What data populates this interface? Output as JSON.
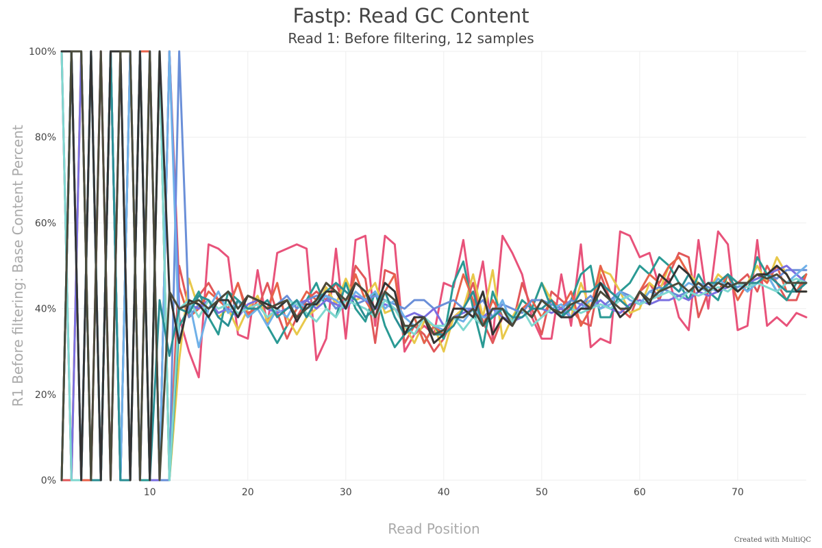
{
  "chart_data": {
    "type": "line",
    "title": "Fastp: Read GC Content",
    "subtitle": "Read 1: Before filtering, 12 samples",
    "xlabel": "Read Position",
    "ylabel": "R1 Before filtering: Base Content Percent",
    "xlim": [
      1,
      77
    ],
    "ylim": [
      0,
      100
    ],
    "x_ticks": [
      10,
      20,
      30,
      40,
      50,
      60,
      70
    ],
    "y_ticks": [
      0,
      20,
      40,
      60,
      80,
      100
    ],
    "y_tick_labels": [
      "0%",
      "20%",
      "40%",
      "60%",
      "80%",
      "100%"
    ],
    "grid": true,
    "legend": "none",
    "credit": "Created with MultiQC",
    "x": [
      1,
      2,
      3,
      4,
      5,
      6,
      7,
      8,
      9,
      10,
      11,
      12,
      13,
      14,
      15,
      16,
      17,
      18,
      19,
      20,
      21,
      22,
      23,
      24,
      25,
      26,
      27,
      28,
      29,
      30,
      31,
      32,
      33,
      34,
      35,
      36,
      37,
      38,
      39,
      40,
      41,
      42,
      43,
      44,
      45,
      46,
      47,
      48,
      49,
      50,
      51,
      52,
      53,
      54,
      55,
      56,
      57,
      58,
      59,
      60,
      61,
      62,
      63,
      64,
      65,
      66,
      67,
      68,
      69,
      70,
      71,
      72,
      73,
      74,
      75,
      76,
      77
    ],
    "series": [
      {
        "color": "#e8527a",
        "values": [
          100,
          0,
          0,
          100,
          0,
          100,
          0,
          100,
          0,
          100,
          0,
          100,
          38,
          30,
          24,
          55,
          54,
          52,
          34,
          33,
          49,
          36,
          53,
          54,
          55,
          54,
          28,
          33,
          54,
          33,
          56,
          57,
          36,
          57,
          55,
          30,
          34,
          36,
          34,
          46,
          45,
          56,
          40,
          51,
          33,
          57,
          53,
          48,
          38,
          33,
          33,
          48,
          36,
          55,
          31,
          33,
          32,
          58,
          57,
          52,
          53,
          45,
          47,
          38,
          35,
          56,
          40,
          58,
          55,
          35,
          36,
          56,
          36,
          38,
          36,
          39,
          38
        ]
      },
      {
        "color": "#e15759",
        "values": [
          0,
          0,
          100,
          0,
          0,
          100,
          0,
          100,
          0,
          0,
          100,
          0,
          50,
          40,
          43,
          46,
          42,
          40,
          46,
          39,
          40,
          46,
          39,
          33,
          38,
          42,
          44,
          42,
          46,
          40,
          50,
          47,
          32,
          49,
          48,
          32,
          36,
          34,
          30,
          33,
          38,
          40,
          46,
          37,
          32,
          38,
          36,
          46,
          40,
          34,
          44,
          42,
          40,
          37,
          36,
          48,
          42,
          40,
          38,
          44,
          46,
          42,
          48,
          53,
          52,
          38,
          44,
          46,
          48,
          46,
          48,
          44,
          50,
          46,
          42,
          42,
          48
        ]
      },
      {
        "color": "#e8c84a",
        "values": [
          100,
          0,
          100,
          0,
          100,
          0,
          100,
          0,
          100,
          0,
          100,
          0,
          28,
          47,
          40,
          42,
          38,
          40,
          35,
          40,
          43,
          37,
          40,
          38,
          34,
          38,
          40,
          45,
          41,
          47,
          42,
          43,
          46,
          39,
          40,
          36,
          32,
          37,
          36,
          30,
          38,
          40,
          48,
          38,
          49,
          33,
          38,
          42,
          40,
          46,
          42,
          40,
          38,
          46,
          40,
          49,
          48,
          44,
          39,
          40,
          46,
          44,
          50,
          52,
          48,
          46,
          44,
          48,
          46,
          44,
          46,
          50,
          46,
          52,
          48,
          44,
          44
        ]
      },
      {
        "color": "#2a9a94",
        "values": [
          0,
          100,
          0,
          100,
          0,
          100,
          0,
          100,
          0,
          0,
          100,
          0,
          36,
          40,
          44,
          38,
          34,
          44,
          42,
          38,
          40,
          36,
          32,
          36,
          40,
          42,
          46,
          40,
          38,
          46,
          40,
          37,
          44,
          36,
          31,
          34,
          38,
          32,
          36,
          33,
          46,
          51,
          40,
          31,
          44,
          38,
          37,
          42,
          40,
          46,
          40,
          38,
          42,
          48,
          50,
          38,
          38,
          44,
          46,
          50,
          48,
          52,
          50,
          46,
          42,
          48,
          44,
          42,
          48,
          46,
          44,
          52,
          48,
          44,
          42,
          46,
          48
        ]
      },
      {
        "color": "#e8624a",
        "values": [
          0,
          100,
          0,
          0,
          100,
          0,
          100,
          0,
          100,
          100,
          0,
          100,
          45,
          38,
          40,
          44,
          42,
          40,
          46,
          38,
          42,
          40,
          46,
          36,
          40,
          44,
          42,
          46,
          44,
          40,
          48,
          42,
          38,
          44,
          48,
          34,
          38,
          32,
          36,
          34,
          40,
          48,
          42,
          36,
          42,
          38,
          36,
          40,
          42,
          38,
          42,
          40,
          44,
          36,
          40,
          50,
          44,
          42,
          40,
          44,
          48,
          46,
          50,
          52,
          48,
          44,
          46,
          44,
          48,
          42,
          46,
          48,
          46,
          50,
          44,
          44,
          48
        ]
      },
      {
        "color": "#6a8fd8",
        "values": [
          0,
          100,
          0,
          100,
          0,
          100,
          0,
          100,
          0,
          100,
          0,
          0,
          100,
          38,
          41,
          40,
          42,
          44,
          40,
          43,
          42,
          40,
          41,
          43,
          40,
          42,
          43,
          43,
          40,
          42,
          41,
          42,
          43,
          42,
          41,
          40,
          42,
          42,
          40,
          41,
          42,
          40,
          40,
          42,
          38,
          41,
          40,
          39,
          42,
          42,
          41,
          40,
          42,
          41,
          43,
          40,
          42,
          44,
          43,
          41,
          44,
          45,
          44,
          43,
          44,
          46,
          45,
          44,
          46,
          45,
          46,
          47,
          48,
          47,
          49,
          49,
          49
        ]
      },
      {
        "color": "#7b6fe0",
        "values": [
          100,
          0,
          100,
          0,
          100,
          0,
          100,
          0,
          100,
          0,
          0,
          100,
          40,
          41,
          40,
          42,
          39,
          40,
          38,
          41,
          42,
          40,
          39,
          40,
          41,
          42,
          40,
          42,
          41,
          40,
          43,
          42,
          40,
          41,
          40,
          38,
          39,
          38,
          40,
          36,
          38,
          39,
          40,
          38,
          40,
          38,
          37,
          38,
          40,
          40,
          39,
          40,
          38,
          41,
          40,
          42,
          40,
          39,
          41,
          42,
          41,
          42,
          42,
          43,
          42,
          44,
          43,
          44,
          45,
          46,
          46,
          47,
          48,
          49,
          50,
          48,
          46
        ]
      },
      {
        "color": "#6fb0e8",
        "values": [
          0,
          100,
          0,
          100,
          0,
          100,
          0,
          100,
          0,
          100,
          0,
          100,
          32,
          42,
          31,
          40,
          44,
          39,
          42,
          38,
          40,
          36,
          40,
          38,
          42,
          40,
          41,
          43,
          42,
          40,
          44,
          42,
          44,
          40,
          42,
          38,
          36,
          38,
          36,
          35,
          38,
          37,
          40,
          38,
          38,
          42,
          36,
          40,
          38,
          42,
          40,
          41,
          38,
          40,
          42,
          40,
          41,
          44,
          42,
          41,
          44,
          43,
          46,
          44,
          46,
          45,
          44,
          47,
          45,
          46,
          44,
          46,
          48,
          44,
          46,
          48,
          50
        ]
      },
      {
        "color": "#7fd8d0",
        "values": [
          100,
          0,
          0,
          100,
          0,
          100,
          100,
          0,
          100,
          0,
          100,
          0,
          40,
          42,
          38,
          42,
          40,
          41,
          39,
          40,
          41,
          38,
          40,
          42,
          41,
          39,
          37,
          40,
          38,
          42,
          41,
          40,
          38,
          42,
          40,
          36,
          34,
          38,
          36,
          36,
          38,
          35,
          38,
          36,
          38,
          40,
          37,
          40,
          36,
          38,
          40,
          38,
          40,
          39,
          40,
          41,
          40,
          42,
          43,
          41,
          42,
          43,
          44,
          42,
          44,
          43,
          44,
          45,
          44,
          46,
          45,
          46,
          45,
          44,
          46,
          47,
          46
        ]
      },
      {
        "color": "#2a8f94",
        "values": [
          0,
          100,
          100,
          0,
          0,
          100,
          0,
          0,
          100,
          0,
          42,
          29,
          40,
          39,
          43,
          42,
          38,
          36,
          42,
          40,
          40,
          42,
          38,
          40,
          42,
          38,
          42,
          44,
          46,
          44,
          42,
          38,
          40,
          44,
          38,
          34,
          36,
          38,
          34,
          34,
          36,
          40,
          44,
          36,
          38,
          40,
          38,
          38,
          40,
          40,
          42,
          38,
          40,
          44,
          44,
          46,
          44,
          42,
          40,
          44,
          42,
          44,
          46,
          44,
          48,
          44,
          46,
          46,
          48,
          44,
          46,
          46,
          48,
          46,
          44,
          44,
          46
        ]
      },
      {
        "color": "#333333",
        "values": [
          100,
          100,
          0,
          100,
          0,
          100,
          100,
          0,
          100,
          0,
          100,
          44,
          32,
          42,
          41,
          38,
          42,
          42,
          38,
          43,
          42,
          41,
          40,
          42,
          37,
          41,
          41,
          44,
          44,
          40,
          46,
          44,
          40,
          46,
          44,
          34,
          38,
          38,
          32,
          34,
          40,
          40,
          38,
          44,
          34,
          38,
          36,
          40,
          38,
          42,
          40,
          38,
          38,
          40,
          40,
          46,
          42,
          38,
          40,
          44,
          41,
          48,
          46,
          50,
          48,
          44,
          46,
          44,
          46,
          44,
          46,
          48,
          48,
          50,
          48,
          44,
          44
        ]
      },
      {
        "color": "#4a4a3a",
        "values": [
          0,
          100,
          100,
          0,
          100,
          0,
          100,
          100,
          0,
          100,
          0,
          44,
          40,
          41,
          42,
          40,
          42,
          44,
          40,
          43,
          42,
          40,
          41,
          42,
          38,
          40,
          42,
          46,
          44,
          42,
          46,
          44,
          38,
          44,
          42,
          36,
          36,
          38,
          34,
          35,
          38,
          38,
          40,
          36,
          40,
          40,
          36,
          40,
          38,
          42,
          40,
          39,
          41,
          42,
          40,
          44,
          42,
          40,
          40,
          44,
          42,
          44,
          45,
          46,
          44,
          46,
          44,
          46,
          45,
          46,
          46,
          48,
          47,
          48,
          46,
          46,
          46
        ]
      }
    ]
  }
}
